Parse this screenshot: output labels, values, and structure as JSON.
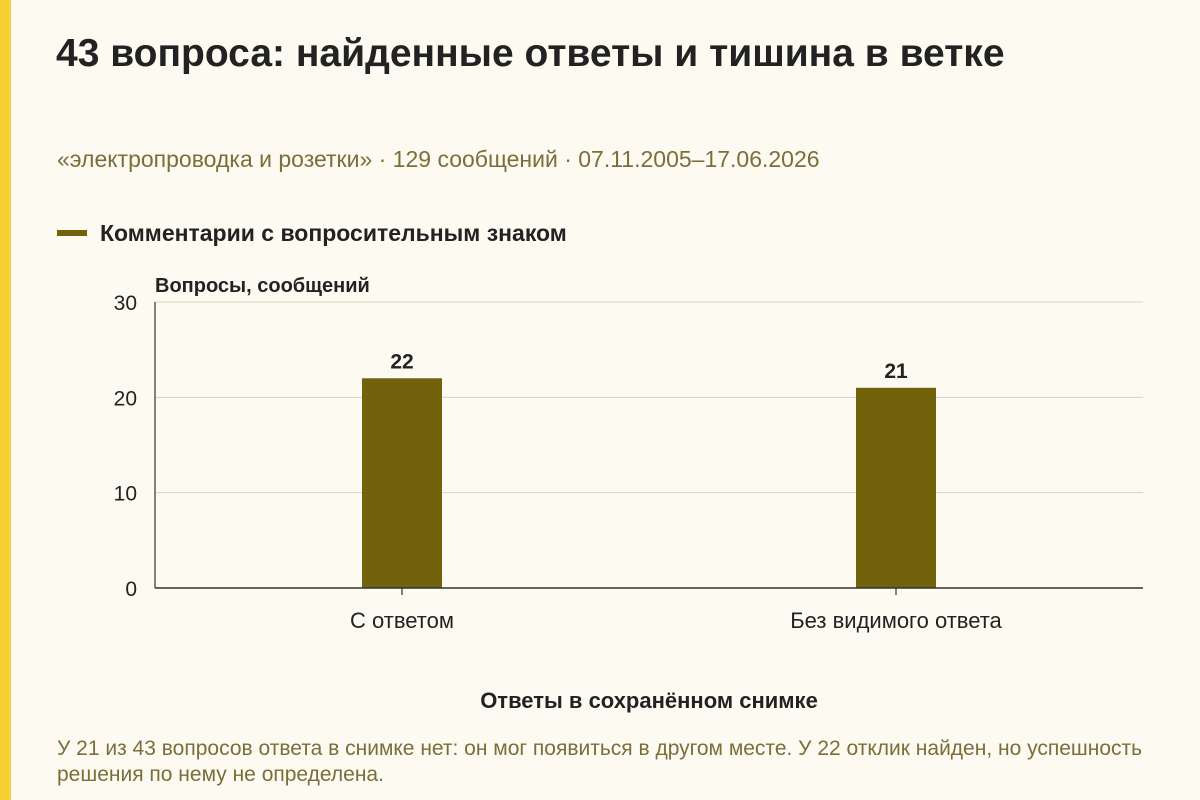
{
  "colors": {
    "background": "#fdfbf1",
    "accent_strip": "#f5cf34",
    "bar": "#72620c",
    "text": "#222222",
    "muted_text": "#7a6e3b",
    "grid": "#d8d4c4"
  },
  "header": {
    "title": "43 вопроса: найденные ответы и тишина в ветке",
    "subtitle": "«электропроводка и розетки» · 129 сообщений · 07.11.2005–17.06.2026"
  },
  "footnote": "У 21 из 43 вопросов ответа в снимке нет: он мог появиться в другом месте. У 22 отклик найден, но успешность решения по нему не определена.",
  "chart_data": {
    "type": "bar",
    "title": "43 вопроса: найденные ответы и тишина в ветке",
    "subtitle": "«электропроводка и розетки» · 129 сообщений · 07.11.2005–17.06.2026",
    "categories": [
      "С ответом",
      "Без видимого ответа"
    ],
    "series": [
      {
        "name": "Комментарии с вопросительным знаком",
        "values": [
          22,
          21
        ]
      }
    ],
    "xlabel": "Ответы в сохранённом снимке",
    "ylabel": "Вопросы, сообщений",
    "ylim": [
      0,
      30
    ],
    "yticks": [
      0,
      10,
      20,
      30
    ],
    "grid": true,
    "legend_position": "top-left",
    "data_labels": true
  }
}
